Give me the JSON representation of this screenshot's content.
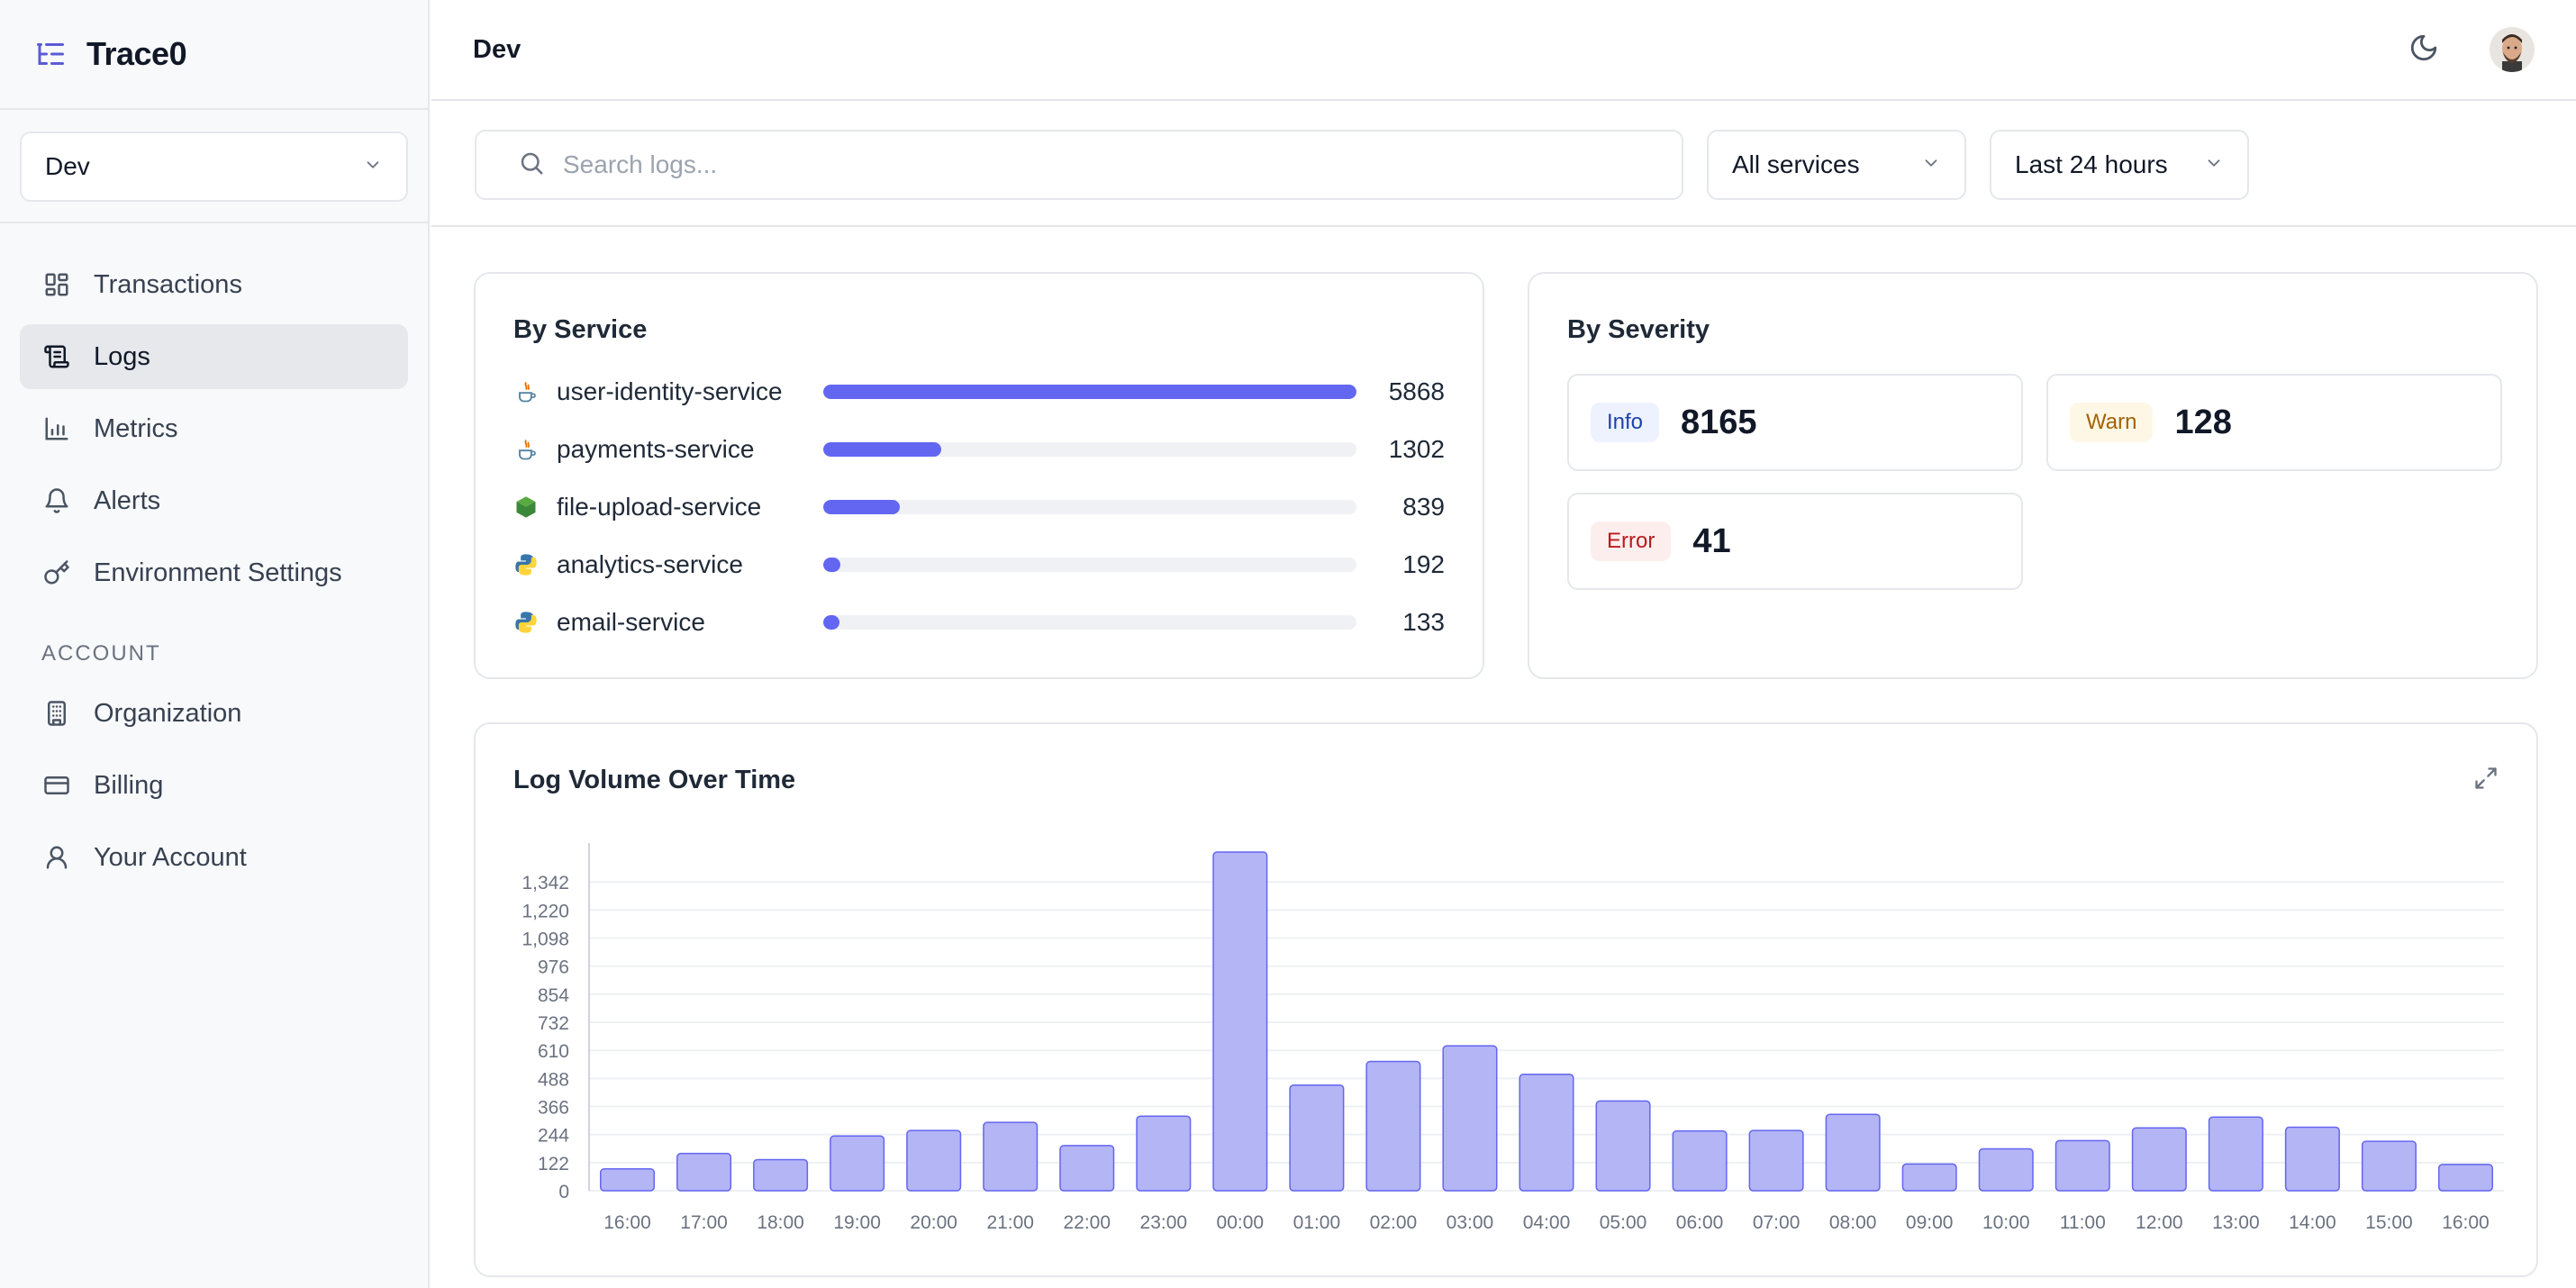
{
  "app": {
    "name": "Trace0"
  },
  "sidebar": {
    "environment": "Dev",
    "nav": [
      {
        "label": "Transactions",
        "icon": "grid-icon"
      },
      {
        "label": "Logs",
        "icon": "logs-icon",
        "active": true
      },
      {
        "label": "Metrics",
        "icon": "bar-chart-icon"
      },
      {
        "label": "Alerts",
        "icon": "bell-icon"
      },
      {
        "label": "Environment Settings",
        "icon": "key-icon"
      }
    ],
    "account_header": "ACCOUNT",
    "account_nav": [
      {
        "label": "Organization",
        "icon": "building-icon"
      },
      {
        "label": "Billing",
        "icon": "credit-card-icon"
      },
      {
        "label": "Your Account",
        "icon": "user-icon"
      }
    ]
  },
  "topbar": {
    "title": "Dev"
  },
  "filters": {
    "search_placeholder": "Search logs...",
    "search_value": "",
    "service": "All services",
    "time_range": "Last 24 hours"
  },
  "by_service": {
    "title": "By Service",
    "max": 5868,
    "items": [
      {
        "name": "user-identity-service",
        "count": 5868,
        "icon": "java-icon"
      },
      {
        "name": "payments-service",
        "count": 1302,
        "icon": "java-icon"
      },
      {
        "name": "file-upload-service",
        "count": 839,
        "icon": "nodejs-icon"
      },
      {
        "name": "analytics-service",
        "count": 192,
        "icon": "python-icon"
      },
      {
        "name": "email-service",
        "count": 133,
        "icon": "python-icon"
      }
    ]
  },
  "by_severity": {
    "title": "By Severity",
    "items": [
      {
        "label": "Info",
        "count": 8165,
        "color": "#1e40af",
        "bg": "#eef2ff"
      },
      {
        "label": "Warn",
        "count": 128,
        "color": "#a16207",
        "bg": "#fef7e6"
      },
      {
        "label": "Error",
        "count": 41,
        "color": "#b91c1c",
        "bg": "#fdeeee"
      }
    ]
  },
  "colors": {
    "accent": "#6366f1",
    "bar_fill": "#b4b5f5",
    "bar_stroke": "#6366f1"
  },
  "chart_data": {
    "type": "bar",
    "title": "Log Volume Over Time",
    "categories": [
      "16:00",
      "17:00",
      "18:00",
      "19:00",
      "20:00",
      "21:00",
      "22:00",
      "23:00",
      "00:00",
      "01:00",
      "02:00",
      "03:00",
      "04:00",
      "05:00",
      "06:00",
      "07:00",
      "08:00",
      "09:00",
      "10:00",
      "11:00",
      "12:00",
      "13:00",
      "14:00",
      "15:00",
      "16:00"
    ],
    "values": [
      95,
      162,
      135,
      238,
      262,
      297,
      196,
      324,
      1472,
      459,
      562,
      630,
      506,
      390,
      260,
      262,
      332,
      116,
      182,
      218,
      273,
      320,
      276,
      215,
      114
    ],
    "yticks": [
      0,
      122,
      244,
      366,
      488,
      610,
      732,
      854,
      976,
      1098,
      1220,
      1342
    ],
    "ytick_labels": [
      "0",
      "122",
      "244",
      "366",
      "488",
      "610",
      "732",
      "854",
      "976",
      "1,098",
      "1,220",
      "1,342"
    ],
    "ylim": [
      0,
      1472
    ],
    "grid": true
  }
}
